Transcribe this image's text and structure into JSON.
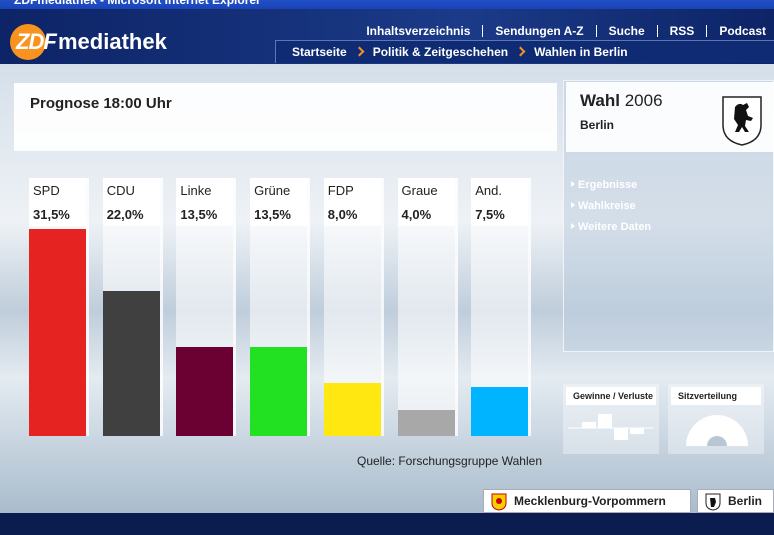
{
  "window_title": "ZDFmediathek - Microsoft Internet Explorer",
  "header": {
    "logo_zdf": "ZDF",
    "logo_rest": "mediathek",
    "nav": [
      "Inhaltsverzeichnis",
      "Sendungen A-Z",
      "Suche",
      "RSS",
      "Podcast"
    ],
    "breadcrumb": [
      "Startseite",
      "Politik & Zeitgeschehen",
      "Wahlen in Berlin"
    ]
  },
  "chart_data": {
    "type": "bar",
    "title": "Prognose 18:00 Uhr",
    "categories": [
      "SPD",
      "CDU",
      "Linke",
      "Grüne",
      "FDP",
      "Graue",
      "And."
    ],
    "values": [
      31.5,
      22.0,
      13.5,
      13.5,
      8.0,
      4.0,
      7.5
    ],
    "value_labels": [
      "31,5%",
      "22,0%",
      "13,5%",
      "13,5%",
      "8,0%",
      "4,0%",
      "7,5%"
    ],
    "colors": [
      "#e52421",
      "#404040",
      "#6b0033",
      "#22e022",
      "#ffe812",
      "#a8a8a8",
      "#00b4ff"
    ],
    "source": "Quelle: Forschungsgruppe Wahlen"
  },
  "sidebar": {
    "title": "Wahl",
    "year": "2006",
    "region": "Berlin",
    "links": [
      "Ergebnisse",
      "Wahlkreise",
      "Weitere Daten"
    ],
    "widgets": [
      "Gewinne / Verluste",
      "Sitzverteilung"
    ]
  },
  "footer": {
    "buttons": [
      "Mecklenburg-Vorpommern",
      "Berlin"
    ]
  }
}
